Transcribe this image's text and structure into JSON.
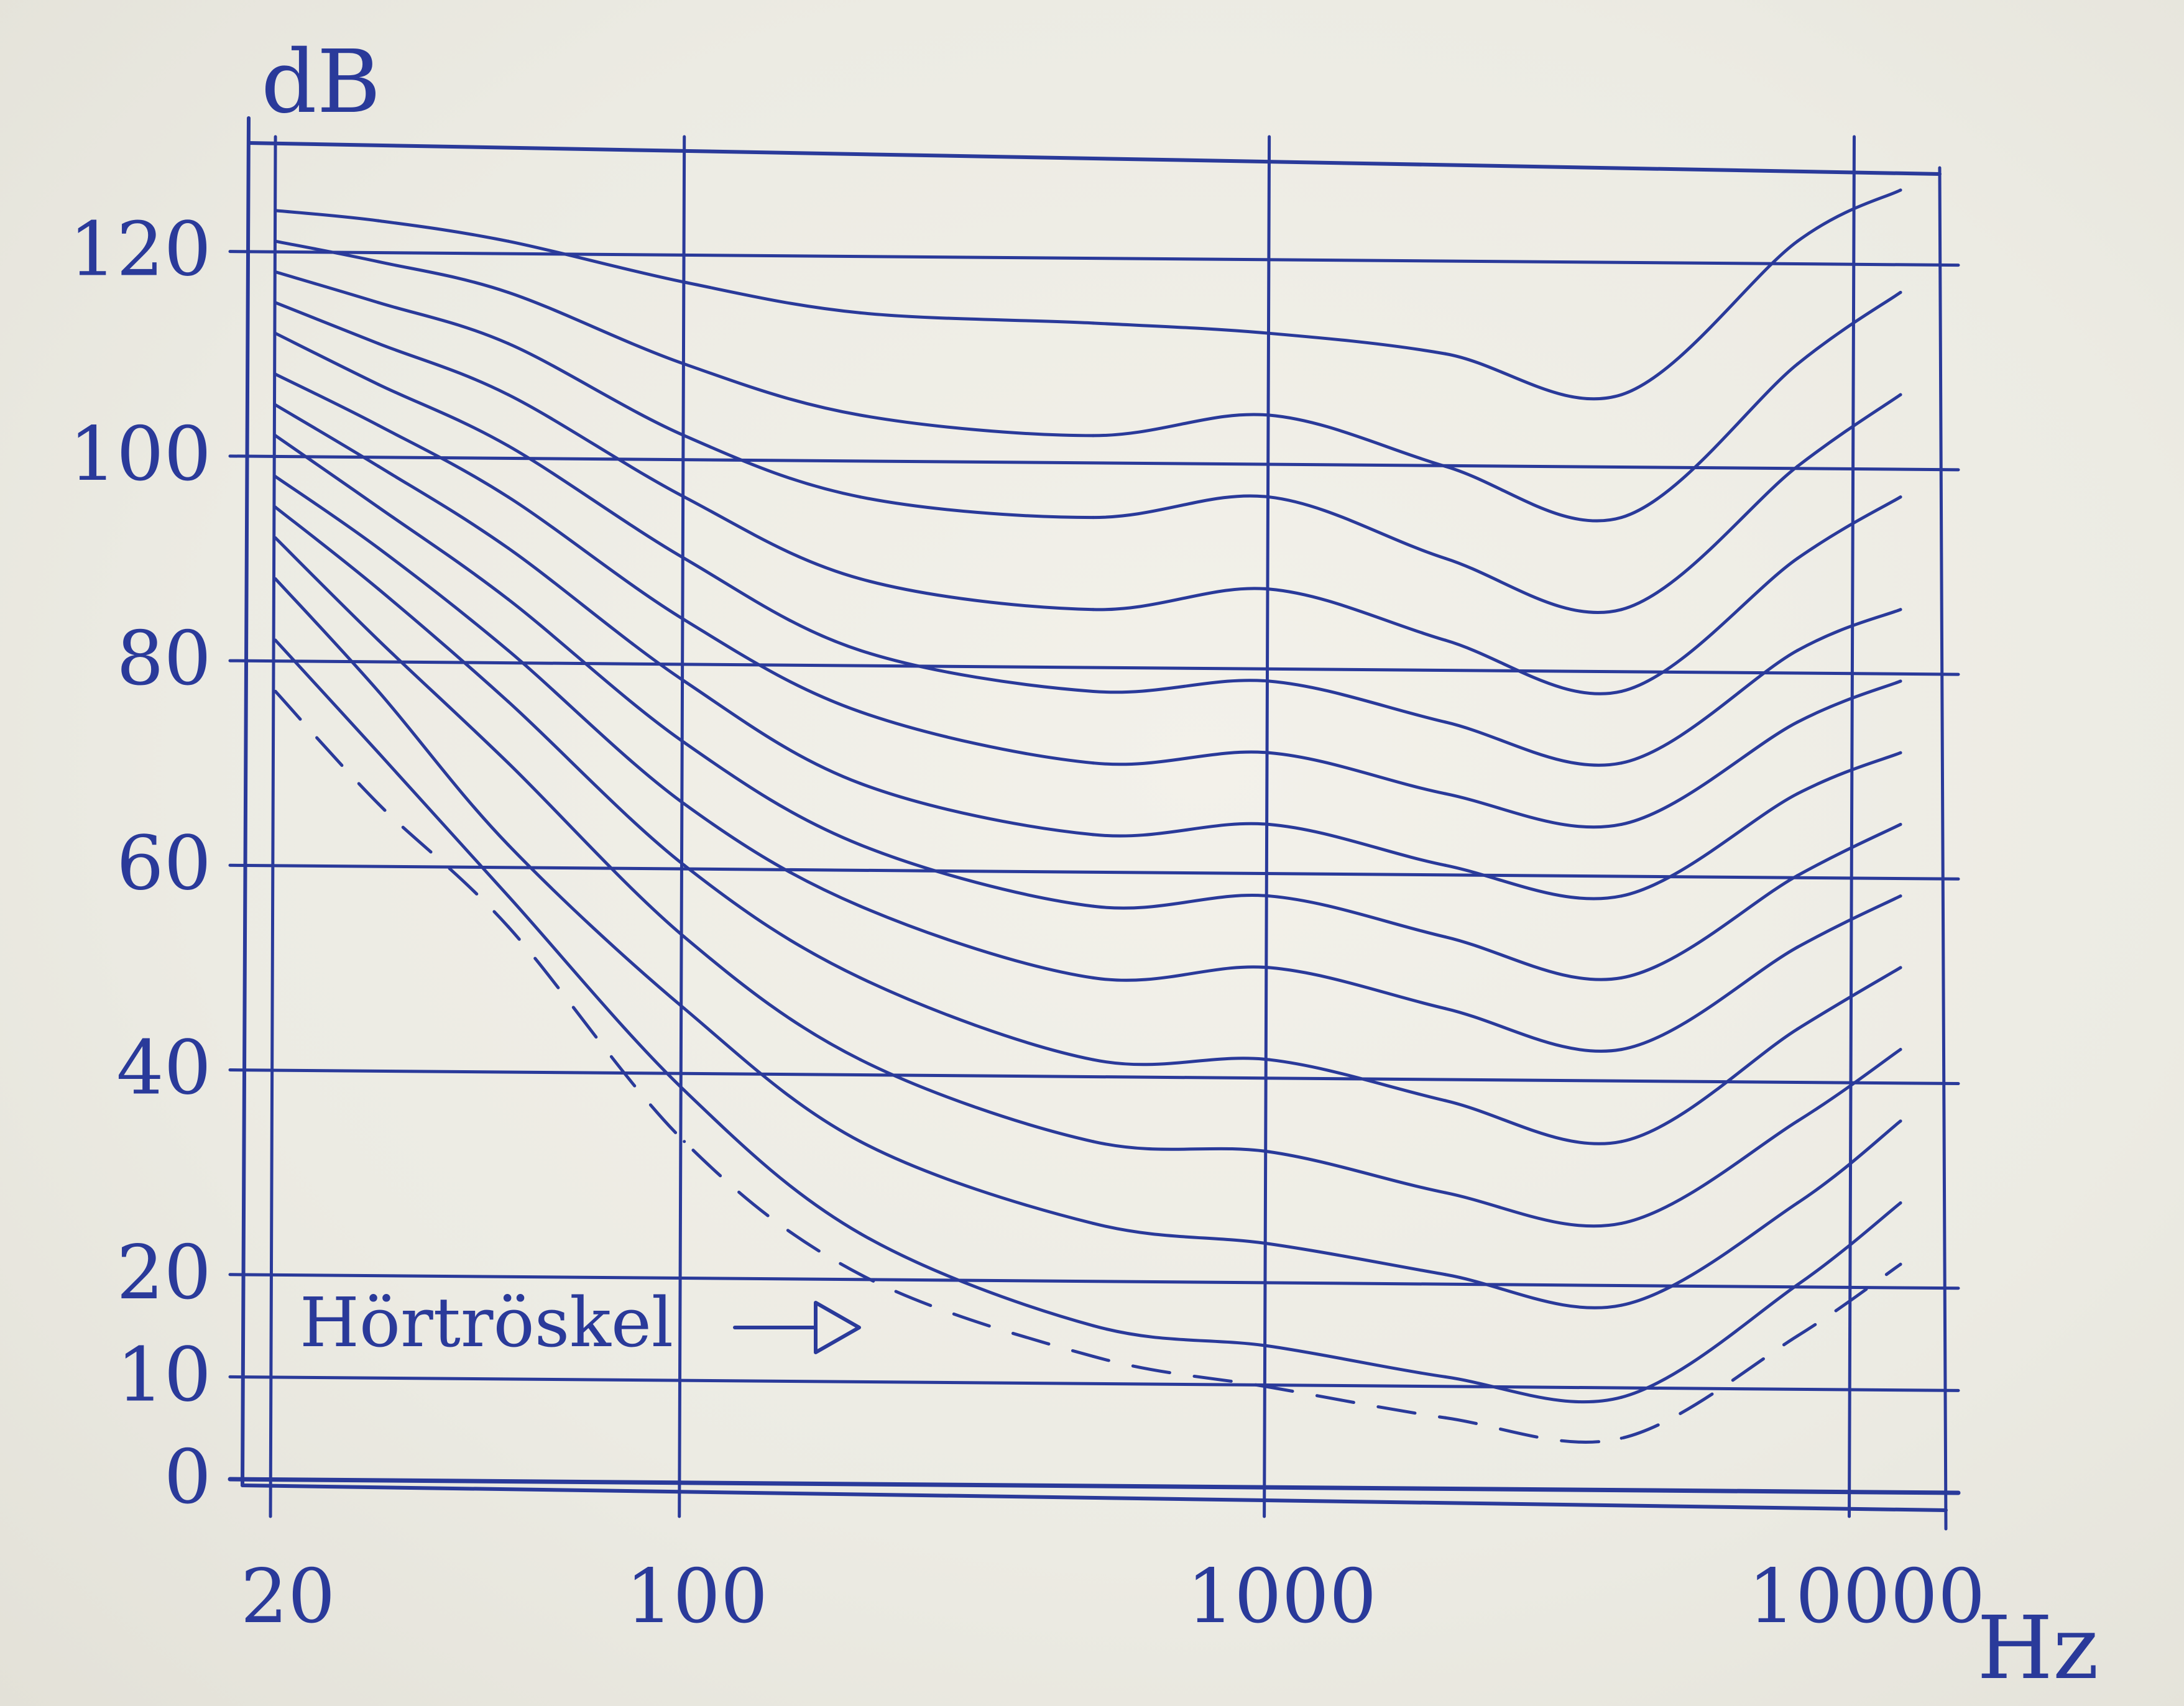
{
  "chart_data": {
    "type": "line",
    "title": "",
    "xlabel": "Hz",
    "ylabel": "dB",
    "x_scale": "log",
    "xlim": [
      18,
      14000
    ],
    "ylim": [
      0,
      130
    ],
    "x_ticks": [
      20,
      100,
      1000,
      10000
    ],
    "x_tick_labels": [
      "20",
      "100",
      "1000",
      "10000"
    ],
    "y_ticks": [
      0,
      10,
      20,
      40,
      60,
      80,
      100,
      120
    ],
    "y_tick_labels": [
      "0",
      "10",
      "20",
      "40",
      "60",
      "80",
      "100",
      "120"
    ],
    "grid": true,
    "annotation": "Hörtröskel",
    "colors": {
      "ink": "#2a3a9a",
      "paper": "#efede6"
    },
    "x": [
      20,
      30,
      50,
      100,
      200,
      500,
      1000,
      2000,
      4000,
      8000,
      12000
    ],
    "series": [
      {
        "values": [
          77,
          66,
          54,
          33,
          20,
          12,
          9,
          6,
          4,
          14,
          21
        ],
        "style": "dashed"
      },
      {
        "values": [
          82,
          71,
          57,
          38,
          24,
          15,
          13,
          10,
          8,
          19,
          27
        ],
        "style": "solid"
      },
      {
        "values": [
          88,
          77,
          62,
          46,
          33,
          25,
          23,
          20,
          17,
          27,
          35
        ],
        "style": "solid"
      },
      {
        "values": [
          92,
          82,
          70,
          53,
          41,
          33,
          32,
          28,
          25,
          35,
          42
        ],
        "style": "solid"
      },
      {
        "values": [
          95,
          87,
          76,
          60,
          49,
          41,
          41,
          37,
          33,
          44,
          50
        ],
        "style": "solid"
      },
      {
        "values": [
          98,
          91,
          81,
          66,
          56,
          49,
          50,
          46,
          42,
          52,
          57
        ],
        "style": "solid"
      },
      {
        "values": [
          102,
          95,
          86,
          72,
          62,
          56,
          57,
          53,
          49,
          59,
          64
        ],
        "style": "solid"
      },
      {
        "values": [
          105,
          99,
          91,
          78,
          68,
          63,
          64,
          60,
          57,
          67,
          71
        ],
        "style": "solid"
      },
      {
        "values": [
          108,
          103,
          96,
          84,
          75,
          70,
          71,
          67,
          64,
          74,
          78
        ],
        "style": "solid"
      },
      {
        "values": [
          112,
          107,
          101,
          90,
          81,
          77,
          78,
          74,
          70,
          81,
          85
        ],
        "style": "solid"
      },
      {
        "values": [
          115,
          111,
          106,
          96,
          88,
          85,
          87,
          82,
          77,
          90,
          96
        ],
        "style": "solid"
      },
      {
        "values": [
          118,
          115,
          111,
          102,
          96,
          94,
          96,
          90,
          85,
          99,
          106
        ],
        "style": "solid"
      },
      {
        "values": [
          121,
          119,
          116,
          109,
          104,
          102,
          104,
          99,
          94,
          109,
          116
        ],
        "style": "solid"
      },
      {
        "values": [
          124,
          123,
          121,
          117,
          114,
          113,
          112,
          110,
          106,
          121,
          126
        ],
        "style": "solid"
      }
    ]
  }
}
